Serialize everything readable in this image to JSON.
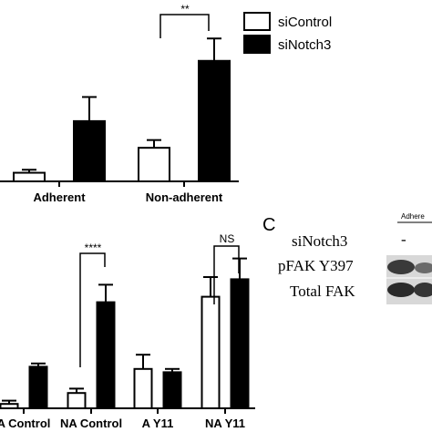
{
  "legend": {
    "items": [
      {
        "label": "siControl",
        "fill": "#ffffff"
      },
      {
        "label": "siNotch3",
        "fill": "#000000"
      }
    ]
  },
  "chart_data": [
    {
      "type": "bar",
      "categories": [
        "Adherent",
        "Non-adherent"
      ],
      "series": [
        {
          "name": "siControl",
          "values": [
            1.0,
            3.9
          ],
          "errors": [
            0.35,
            0.9
          ]
        },
        {
          "name": "siNotch3",
          "values": [
            7.0,
            14.0
          ],
          "errors": [
            2.8,
            2.6
          ]
        }
      ],
      "ylim": [
        0,
        18
      ],
      "annotations": [
        {
          "between": "Non-adherent",
          "text": "**"
        }
      ]
    },
    {
      "type": "bar",
      "categories": [
        "A Control",
        "NA Control",
        "A Y11",
        "NA Y11"
      ],
      "series": [
        {
          "name": "siControl",
          "values": [
            0.4,
            1.4,
            3.6,
            10.2
          ],
          "errors": [
            0.3,
            0.4,
            1.3,
            1.8
          ]
        },
        {
          "name": "siNotch3",
          "values": [
            3.8,
            9.7,
            3.3,
            11.8
          ],
          "errors": [
            0.3,
            1.6,
            0.3,
            1.9
          ]
        }
      ],
      "ylim": [
        0,
        15
      ],
      "annotations": [
        {
          "between": "NA Control",
          "text": "****"
        },
        {
          "between": "NA Y11",
          "text": "NS"
        }
      ]
    }
  ],
  "panel_c": {
    "letter": "C",
    "header": "Adhere",
    "rows": [
      {
        "label": "siNotch3",
        "value": "-"
      },
      {
        "label": "pFAK Y397"
      },
      {
        "label": "Total FAK"
      }
    ]
  }
}
